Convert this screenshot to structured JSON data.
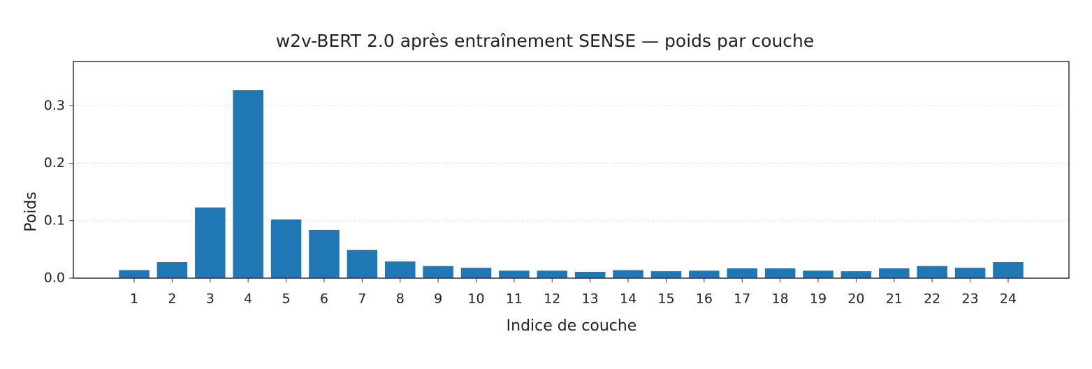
{
  "chart_data": {
    "type": "bar",
    "title": "w2v-BERT 2.0 après entraînement SENSE — poids par couche",
    "xlabel": "Indice de couche",
    "ylabel": "Poids",
    "x": [
      1,
      2,
      3,
      4,
      5,
      6,
      7,
      8,
      9,
      10,
      11,
      12,
      13,
      14,
      15,
      16,
      17,
      18,
      19,
      20,
      21,
      22,
      23,
      24
    ],
    "values": [
      0.014,
      0.028,
      0.123,
      0.327,
      0.102,
      0.084,
      0.049,
      0.029,
      0.021,
      0.018,
      0.013,
      0.013,
      0.011,
      0.014,
      0.012,
      0.013,
      0.017,
      0.017,
      0.013,
      0.012,
      0.017,
      0.021,
      0.018,
      0.028
    ],
    "color": "#1f77b4",
    "xlim": [
      -0.6,
      25.6
    ],
    "xticks": [
      1,
      2,
      3,
      4,
      5,
      6,
      7,
      8,
      9,
      10,
      11,
      12,
      13,
      14,
      15,
      16,
      17,
      18,
      19,
      20,
      21,
      22,
      23,
      24
    ],
    "ylim": [
      0,
      0.377
    ],
    "yticks": [
      {
        "value": 0,
        "label": "0.0"
      },
      0.1,
      0.2,
      0.3
    ],
    "grid": true
  }
}
